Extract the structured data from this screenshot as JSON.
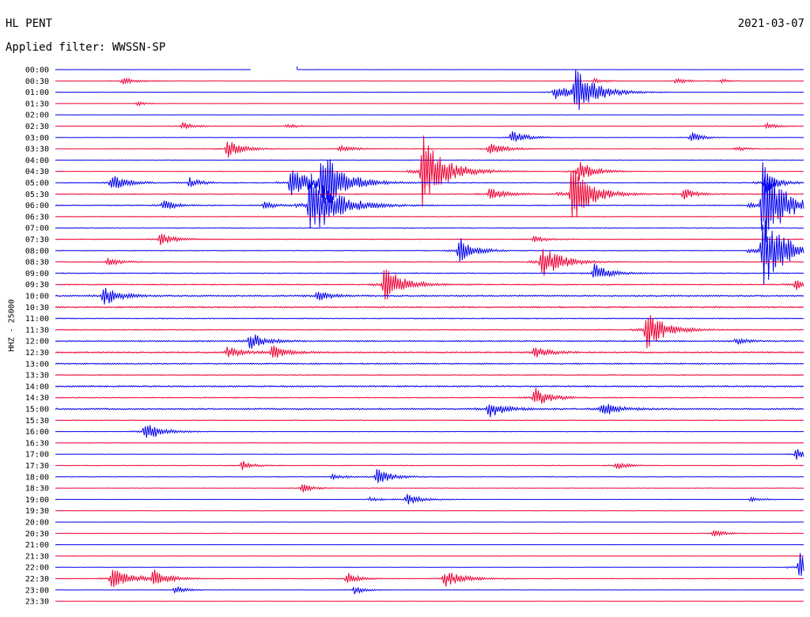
{
  "header": {
    "station": "HL PENT",
    "date": "2021-03-07",
    "filter": "Applied filter: WWSSN-SP"
  },
  "colors": {
    "even": "#0000ee",
    "odd": "#ee0033"
  },
  "chart_data": {
    "type": "line",
    "title": "HL PENT",
    "ylabel": "HHZ - 25000",
    "tick_labels": [
      "00:00",
      "00:30",
      "01:00",
      "01:30",
      "02:00",
      "02:30",
      "03:00",
      "03:30",
      "04:00",
      "04:30",
      "05:00",
      "05:30",
      "06:00",
      "06:30",
      "07:00",
      "07:30",
      "08:00",
      "08:30",
      "09:00",
      "09:30",
      "10:00",
      "10:30",
      "11:00",
      "11:30",
      "12:00",
      "12:30",
      "13:00",
      "13:30",
      "14:00",
      "14:30",
      "15:00",
      "15:30",
      "16:00",
      "16:30",
      "17:00",
      "17:30",
      "18:00",
      "18:30",
      "19:00",
      "19:30",
      "20:00",
      "20:30",
      "21:00",
      "21:30",
      "22:00",
      "22:30",
      "23:00",
      "23:30"
    ],
    "minutes_per_row": 30,
    "noise": [
      0.2,
      0.3,
      0.3,
      0.2,
      0.2,
      0.3,
      0.3,
      0.4,
      0.4,
      0.4,
      0.5,
      0.6,
      0.6,
      0.5,
      0.5,
      0.5,
      0.5,
      0.5,
      0.6,
      0.7,
      0.9,
      0.9,
      0.6,
      0.6,
      0.8,
      0.9,
      0.8,
      0.6,
      0.9,
      0.6,
      0.9,
      0.5,
      0.4,
      0.4,
      0.3,
      0.4,
      0.4,
      0.3,
      0.3,
      0.3,
      0.2,
      0.3,
      0.2,
      0.3,
      0.3,
      0.4,
      0.3,
      0.2
    ],
    "gaps": [
      {
        "row": 0,
        "start": 0.262,
        "end": 0.323
      }
    ],
    "events": [
      {
        "row": 1,
        "t": 0.09,
        "amp": 4,
        "dur": 0.04
      },
      {
        "row": 1,
        "t": 0.72,
        "amp": 3,
        "dur": 0.03
      },
      {
        "row": 1,
        "t": 0.83,
        "amp": 4,
        "dur": 0.03
      },
      {
        "row": 1,
        "t": 0.89,
        "amp": 3,
        "dur": 0.02
      },
      {
        "row": 2,
        "t": 0.667,
        "amp": 10,
        "dur": 0.04
      },
      {
        "row": 2,
        "t": 0.695,
        "amp": 28,
        "dur": 0.06
      },
      {
        "row": 3,
        "t": 0.11,
        "amp": 3,
        "dur": 0.02
      },
      {
        "row": 5,
        "t": 0.17,
        "amp": 5,
        "dur": 0.03
      },
      {
        "row": 5,
        "t": 0.31,
        "amp": 3,
        "dur": 0.03
      },
      {
        "row": 5,
        "t": 0.95,
        "amp": 4,
        "dur": 0.03
      },
      {
        "row": 6,
        "t": 0.61,
        "amp": 9,
        "dur": 0.04
      },
      {
        "row": 6,
        "t": 0.85,
        "amp": 7,
        "dur": 0.03
      },
      {
        "row": 7,
        "t": 0.23,
        "amp": 12,
        "dur": 0.04
      },
      {
        "row": 7,
        "t": 0.38,
        "amp": 4,
        "dur": 0.04
      },
      {
        "row": 7,
        "t": 0.58,
        "amp": 9,
        "dur": 0.04
      },
      {
        "row": 7,
        "t": 0.91,
        "amp": 3,
        "dur": 0.03
      },
      {
        "row": 9,
        "t": 0.49,
        "amp": 50,
        "dur": 0.06
      },
      {
        "row": 9,
        "t": 0.7,
        "amp": 14,
        "dur": 0.04
      },
      {
        "row": 10,
        "t": 0.075,
        "amp": 12,
        "dur": 0.04
      },
      {
        "row": 10,
        "t": 0.18,
        "amp": 7,
        "dur": 0.03
      },
      {
        "row": 10,
        "t": 0.315,
        "amp": 26,
        "dur": 0.04
      },
      {
        "row": 10,
        "t": 0.355,
        "amp": 45,
        "dur": 0.06
      },
      {
        "row": 10,
        "t": 0.95,
        "amp": 20,
        "dur": 0.03
      },
      {
        "row": 11,
        "t": 0.58,
        "amp": 9,
        "dur": 0.04
      },
      {
        "row": 11,
        "t": 0.69,
        "amp": 40,
        "dur": 0.05
      },
      {
        "row": 11,
        "t": 0.84,
        "amp": 8,
        "dur": 0.03
      },
      {
        "row": 12,
        "t": 0.145,
        "amp": 8,
        "dur": 0.03
      },
      {
        "row": 12,
        "t": 0.28,
        "amp": 6,
        "dur": 0.03
      },
      {
        "row": 12,
        "t": 0.34,
        "amp": 45,
        "dur": 0.07
      },
      {
        "row": 12,
        "t": 0.945,
        "amp": 55,
        "dur": 0.06
      },
      {
        "row": 15,
        "t": 0.14,
        "amp": 8,
        "dur": 0.04
      },
      {
        "row": 15,
        "t": 0.64,
        "amp": 5,
        "dur": 0.03
      },
      {
        "row": 16,
        "t": 0.54,
        "amp": 18,
        "dur": 0.04
      },
      {
        "row": 16,
        "t": 0.945,
        "amp": 50,
        "dur": 0.06
      },
      {
        "row": 17,
        "t": 0.07,
        "amp": 6,
        "dur": 0.03
      },
      {
        "row": 17,
        "t": 0.65,
        "amp": 25,
        "dur": 0.05
      },
      {
        "row": 18,
        "t": 0.72,
        "amp": 12,
        "dur": 0.04
      },
      {
        "row": 19,
        "t": 0.44,
        "amp": 24,
        "dur": 0.05
      },
      {
        "row": 19,
        "t": 0.99,
        "amp": 8,
        "dur": 0.02
      },
      {
        "row": 20,
        "t": 0.065,
        "amp": 14,
        "dur": 0.04
      },
      {
        "row": 20,
        "t": 0.35,
        "amp": 6,
        "dur": 0.04
      },
      {
        "row": 23,
        "t": 0.79,
        "amp": 26,
        "dur": 0.05
      },
      {
        "row": 24,
        "t": 0.26,
        "amp": 12,
        "dur": 0.04
      },
      {
        "row": 24,
        "t": 0.91,
        "amp": 4,
        "dur": 0.03
      },
      {
        "row": 25,
        "t": 0.23,
        "amp": 7,
        "dur": 0.04
      },
      {
        "row": 25,
        "t": 0.29,
        "amp": 9,
        "dur": 0.04
      },
      {
        "row": 25,
        "t": 0.64,
        "amp": 7,
        "dur": 0.04
      },
      {
        "row": 29,
        "t": 0.64,
        "amp": 14,
        "dur": 0.04
      },
      {
        "row": 30,
        "t": 0.58,
        "amp": 12,
        "dur": 0.04
      },
      {
        "row": 30,
        "t": 0.73,
        "amp": 11,
        "dur": 0.04
      },
      {
        "row": 32,
        "t": 0.12,
        "amp": 14,
        "dur": 0.04
      },
      {
        "row": 34,
        "t": 0.99,
        "amp": 9,
        "dur": 0.02
      },
      {
        "row": 35,
        "t": 0.25,
        "amp": 6,
        "dur": 0.03
      },
      {
        "row": 35,
        "t": 0.75,
        "amp": 5,
        "dur": 0.03
      },
      {
        "row": 36,
        "t": 0.43,
        "amp": 11,
        "dur": 0.04
      },
      {
        "row": 36,
        "t": 0.37,
        "amp": 3,
        "dur": 0.04
      },
      {
        "row": 37,
        "t": 0.33,
        "amp": 6,
        "dur": 0.03
      },
      {
        "row": 38,
        "t": 0.47,
        "amp": 7,
        "dur": 0.04
      },
      {
        "row": 38,
        "t": 0.42,
        "amp": 3,
        "dur": 0.03
      },
      {
        "row": 38,
        "t": 0.93,
        "amp": 3,
        "dur": 0.03
      },
      {
        "row": 41,
        "t": 0.88,
        "amp": 5,
        "dur": 0.03
      },
      {
        "row": 44,
        "t": 0.995,
        "amp": 20,
        "dur": 0.02
      },
      {
        "row": 45,
        "t": 0.075,
        "amp": 14,
        "dur": 0.05
      },
      {
        "row": 45,
        "t": 0.13,
        "amp": 12,
        "dur": 0.04
      },
      {
        "row": 45,
        "t": 0.39,
        "amp": 8,
        "dur": 0.03
      },
      {
        "row": 45,
        "t": 0.52,
        "amp": 11,
        "dur": 0.05
      },
      {
        "row": 46,
        "t": 0.16,
        "amp": 5,
        "dur": 0.03
      },
      {
        "row": 46,
        "t": 0.4,
        "amp": 5,
        "dur": 0.03
      }
    ]
  }
}
